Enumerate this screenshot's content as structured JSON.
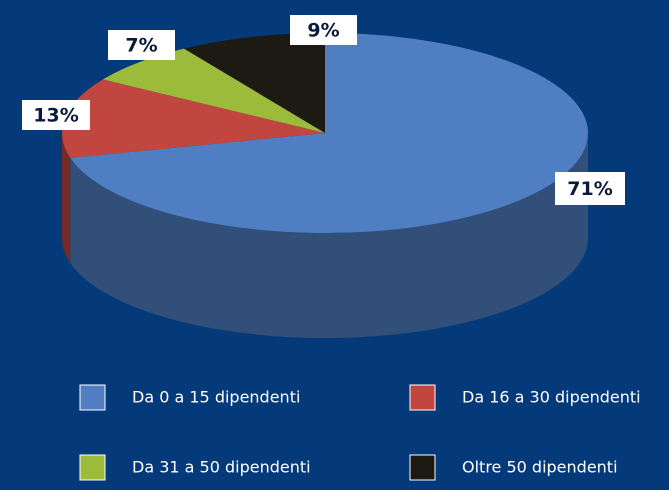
{
  "chart_data": {
    "type": "pie",
    "categories": [
      "Da 0 a 15 dipendenti",
      "Da 16 a 30 dipendenti",
      "Da 31 a 50 dipendenti",
      "Oltre 50 dipendenti"
    ],
    "values": [
      71,
      13,
      7,
      9
    ],
    "value_labels": [
      "71%",
      "13%",
      "7%",
      "9%"
    ],
    "colors": [
      "#4f7fc2",
      "#c0463f",
      "#9cbb3b",
      "#1c1a12"
    ],
    "legend": "bottom"
  }
}
